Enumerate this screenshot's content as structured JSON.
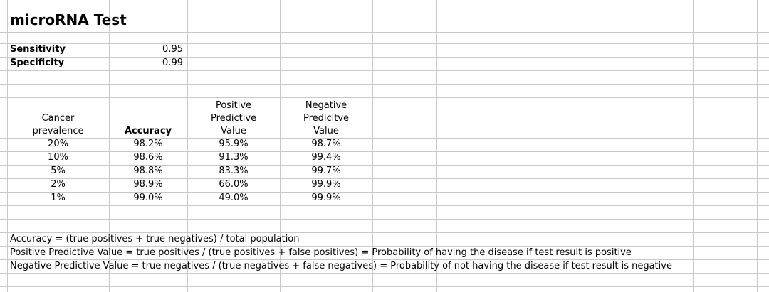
{
  "title": "microRNA Test",
  "parameters": [
    {
      "label": "Sensitivity",
      "value": "0.95"
    },
    {
      "label": "Specificity",
      "value": "0.99"
    }
  ],
  "table": {
    "headers": [
      [
        "Cancer",
        "prevalence"
      ],
      [
        "Accuracy"
      ],
      [
        "Positive",
        "Predictive",
        "Value"
      ],
      [
        "Negative",
        "Predicitve",
        "Value"
      ]
    ],
    "rows": [
      [
        "20%",
        "98.2%",
        "95.9%",
        "98.7%"
      ],
      [
        "10%",
        "98.6%",
        "91.3%",
        "99.4%"
      ],
      [
        "5%",
        "98.8%",
        "83.3%",
        "99.7%"
      ],
      [
        "2%",
        "98.9%",
        "66.0%",
        "99.9%"
      ],
      [
        "1%",
        "99.0%",
        "49.0%",
        "99.9%"
      ]
    ]
  },
  "notes": [
    "Accuracy = (true positives + true negatives) / total population",
    "Positive Predictive Value = true positives / (true positives + false positives) = Probability of having the disease if test result is positive",
    "Negative Predictive Value = true negatives / (true negatives + false negatives) = Probability of not having the disease if test result is negative"
  ]
}
